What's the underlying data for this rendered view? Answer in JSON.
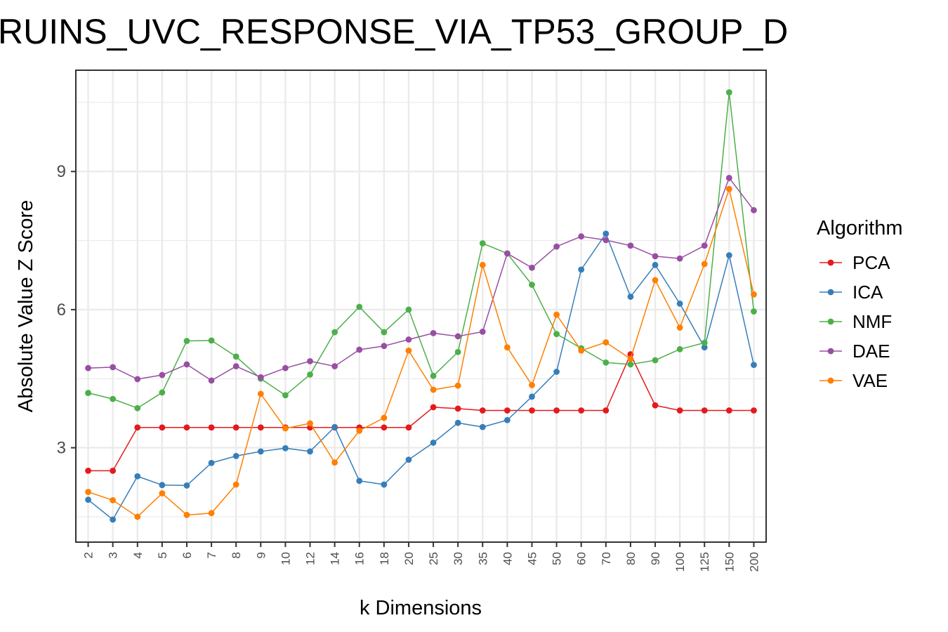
{
  "chart_data": {
    "type": "line",
    "title": "RUINS_UVC_RESPONSE_VIA_TP53_GROUP_D",
    "xlabel": "k Dimensions",
    "ylabel": "Absolute Value Z Score",
    "categories": [
      "2",
      "3",
      "4",
      "5",
      "6",
      "7",
      "8",
      "9",
      "10",
      "12",
      "14",
      "16",
      "18",
      "20",
      "25",
      "30",
      "35",
      "40",
      "45",
      "50",
      "60",
      "70",
      "80",
      "90",
      "100",
      "125",
      "150",
      "200"
    ],
    "ylim": [
      0.95,
      11.2
    ],
    "yticks": [
      3,
      6,
      9
    ],
    "ytick_labels": [
      "3",
      "6",
      "9"
    ],
    "grid": true,
    "legend": {
      "title": "Algorithm",
      "position": "right"
    },
    "series": [
      {
        "name": "PCA",
        "color": "#e41a1c",
        "values": [
          2.5,
          2.5,
          3.44,
          3.44,
          3.44,
          3.44,
          3.44,
          3.44,
          3.44,
          3.44,
          3.44,
          3.44,
          3.44,
          3.44,
          3.88,
          3.85,
          3.81,
          3.81,
          3.81,
          3.81,
          3.81,
          3.81,
          5.03,
          3.92,
          3.81,
          3.81,
          3.81,
          3.81
        ]
      },
      {
        "name": "ICA",
        "color": "#377eb8",
        "values": [
          1.87,
          1.44,
          2.38,
          2.19,
          2.18,
          2.67,
          2.82,
          2.92,
          2.99,
          2.92,
          3.45,
          2.28,
          2.2,
          2.74,
          3.11,
          3.54,
          3.45,
          3.6,
          4.11,
          4.65,
          6.87,
          7.65,
          6.28,
          6.97,
          6.13,
          5.18,
          7.18,
          4.8
        ]
      },
      {
        "name": "NMF",
        "color": "#4daf4a",
        "values": [
          4.19,
          4.06,
          3.86,
          4.2,
          5.32,
          5.33,
          4.98,
          4.5,
          4.14,
          4.59,
          5.51,
          6.06,
          5.51,
          6.0,
          4.56,
          5.08,
          7.44,
          7.22,
          6.54,
          5.47,
          5.16,
          4.85,
          4.81,
          4.9,
          5.14,
          5.28,
          10.72,
          5.96
        ]
      },
      {
        "name": "DAE",
        "color": "#984ea3",
        "values": [
          4.73,
          4.75,
          4.49,
          4.58,
          4.81,
          4.46,
          4.77,
          4.53,
          4.73,
          4.88,
          4.77,
          5.13,
          5.21,
          5.35,
          5.49,
          5.42,
          5.52,
          7.22,
          6.91,
          7.37,
          7.59,
          7.51,
          7.39,
          7.16,
          7.11,
          7.39,
          8.86,
          8.16
        ]
      },
      {
        "name": "VAE",
        "color": "#ff7f00",
        "values": [
          2.04,
          1.86,
          1.5,
          2.01,
          1.54,
          1.58,
          2.2,
          4.17,
          3.42,
          3.53,
          2.68,
          3.37,
          3.65,
          5.11,
          4.26,
          4.35,
          6.97,
          5.18,
          4.36,
          5.89,
          5.11,
          5.29,
          4.93,
          6.64,
          5.61,
          6.99,
          8.62,
          6.33
        ]
      }
    ]
  }
}
